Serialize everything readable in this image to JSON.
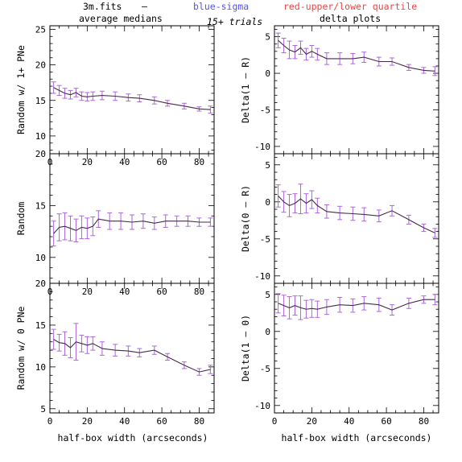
{
  "header": {
    "file": "3m.fits",
    "dash": "–",
    "blue_note": "blue-sigma",
    "red_note": "red-upper/lower quartile",
    "trials": "15+ trials",
    "left_title": "average medians",
    "right_title": "delta plots",
    "colors": {
      "blue": "#5555ee",
      "red": "#ee4444",
      "line": "#4a2a4a",
      "err": "#aa66dd"
    }
  },
  "chart_data": [
    {
      "type": "line",
      "id": "left1",
      "ylabel": "Random w/ 1+ PNe",
      "xlim": [
        0,
        88
      ],
      "ylim": [
        7.5,
        25.5
      ],
      "yticks": [
        10,
        15,
        20,
        25
      ],
      "xticks": [
        0,
        20,
        40,
        60,
        80
      ],
      "x": [
        2,
        5,
        8,
        11,
        14,
        17,
        20,
        23,
        28,
        35,
        42,
        48,
        56,
        63,
        72,
        80,
        86
      ],
      "y": [
        16.8,
        16.4,
        16.0,
        15.8,
        16.1,
        15.6,
        15.5,
        15.6,
        15.7,
        15.6,
        15.4,
        15.3,
        15.0,
        14.6,
        14.2,
        13.8,
        13.7
      ],
      "err": [
        0.8,
        0.7,
        0.7,
        0.6,
        0.6,
        0.6,
        0.6,
        0.6,
        0.6,
        0.6,
        0.5,
        0.5,
        0.5,
        0.4,
        0.4,
        0.3,
        0.5
      ]
    },
    {
      "type": "line",
      "id": "right1",
      "ylabel": "Delta(1 – R)",
      "xlim": [
        0,
        88
      ],
      "ylim": [
        -11,
        6.5
      ],
      "yticks": [
        -10,
        -5,
        0,
        5
      ],
      "xticks": [
        0,
        20,
        40,
        60,
        80
      ],
      "x": [
        2,
        5,
        8,
        11,
        14,
        17,
        20,
        23,
        28,
        35,
        42,
        48,
        56,
        63,
        72,
        80,
        86
      ],
      "y": [
        4.5,
        3.8,
        3.2,
        2.9,
        3.5,
        2.6,
        3.0,
        2.6,
        2.0,
        2.0,
        2.0,
        2.2,
        1.6,
        1.6,
        0.8,
        0.4,
        0.3
      ],
      "err": [
        1.0,
        1.0,
        1.2,
        0.9,
        0.9,
        0.8,
        0.8,
        0.8,
        0.8,
        0.8,
        0.7,
        0.7,
        0.6,
        0.5,
        0.4,
        0.4,
        0.6
      ]
    },
    {
      "type": "line",
      "id": "left2",
      "ylabel": "Random",
      "xlim": [
        0,
        88
      ],
      "ylim": [
        7.5,
        20
      ],
      "yticks": [
        10,
        15,
        20
      ],
      "xticks": [
        0,
        20,
        40,
        60,
        80
      ],
      "x": [
        2,
        5,
        8,
        11,
        14,
        17,
        20,
        23,
        26,
        32,
        38,
        44,
        50,
        56,
        62,
        68,
        74,
        80,
        86
      ],
      "y": [
        12.3,
        12.9,
        13.0,
        12.8,
        12.6,
        12.9,
        12.8,
        13.0,
        13.7,
        13.5,
        13.5,
        13.4,
        13.5,
        13.3,
        13.5,
        13.5,
        13.5,
        13.4,
        13.4
      ],
      "err": [
        1.2,
        1.3,
        1.3,
        1.2,
        1.1,
        1.1,
        1.0,
        0.9,
        0.8,
        0.8,
        0.8,
        0.7,
        0.7,
        0.6,
        0.6,
        0.5,
        0.5,
        0.4,
        0.4
      ]
    },
    {
      "type": "line",
      "id": "right2",
      "ylabel": "Delta(0 – R)",
      "xlim": [
        0,
        88
      ],
      "ylim": [
        -11,
        6.5
      ],
      "yticks": [
        -10,
        -5,
        0,
        5
      ],
      "xticks": [
        0,
        20,
        40,
        60,
        80
      ],
      "x": [
        2,
        5,
        8,
        11,
        14,
        17,
        20,
        23,
        28,
        35,
        42,
        48,
        56,
        63,
        72,
        80,
        86
      ],
      "y": [
        0.8,
        0.0,
        -0.5,
        -0.2,
        0.4,
        -0.2,
        0.3,
        -0.5,
        -1.3,
        -1.5,
        -1.6,
        -1.7,
        -1.9,
        -1.2,
        -2.4,
        -3.5,
        -4.2
      ],
      "err": [
        1.5,
        1.4,
        1.5,
        1.3,
        2.0,
        1.3,
        1.2,
        1.0,
        0.9,
        0.9,
        0.9,
        0.9,
        0.8,
        0.7,
        0.6,
        0.5,
        0.6
      ]
    },
    {
      "type": "line",
      "id": "left3",
      "ylabel": "Random w/ 0 PNe",
      "xlim": [
        0,
        88
      ],
      "ylim": [
        4.5,
        20
      ],
      "yticks": [
        5,
        10,
        15,
        20
      ],
      "xticks": [
        0,
        20,
        40,
        60,
        80
      ],
      "x": [
        2,
        5,
        8,
        11,
        14,
        17,
        20,
        23,
        28,
        35,
        42,
        48,
        56,
        63,
        72,
        80,
        86
      ],
      "y": [
        13.3,
        12.9,
        12.8,
        12.3,
        13.0,
        12.8,
        12.6,
        12.8,
        12.2,
        12.0,
        11.9,
        11.7,
        12.0,
        11.2,
        10.2,
        9.4,
        9.7
      ],
      "err": [
        1.2,
        1.0,
        1.4,
        1.2,
        2.2,
        1.0,
        1.0,
        0.8,
        0.8,
        0.7,
        0.6,
        0.5,
        0.5,
        0.4,
        0.4,
        0.4,
        0.5
      ]
    },
    {
      "type": "line",
      "id": "right3",
      "ylabel": "Delta(1 – 0)",
      "xlim": [
        0,
        88
      ],
      "ylim": [
        -11,
        6.5
      ],
      "yticks": [
        -10,
        -5,
        0,
        5
      ],
      "xticks": [
        0,
        20,
        40,
        60,
        80
      ],
      "x": [
        2,
        5,
        8,
        11,
        14,
        17,
        20,
        23,
        28,
        35,
        42,
        48,
        56,
        63,
        72,
        80,
        86
      ],
      "y": [
        3.8,
        3.5,
        3.2,
        3.5,
        3.2,
        3.0,
        3.1,
        3.0,
        3.3,
        3.6,
        3.5,
        3.8,
        3.6,
        2.9,
        3.8,
        4.3,
        4.3
      ],
      "err": [
        1.3,
        1.4,
        1.5,
        1.3,
        1.6,
        1.2,
        1.2,
        1.1,
        1.0,
        1.0,
        0.9,
        0.9,
        0.9,
        0.7,
        0.7,
        0.5,
        0.7
      ]
    }
  ],
  "xlabel": "half-box width (arcseconds)"
}
